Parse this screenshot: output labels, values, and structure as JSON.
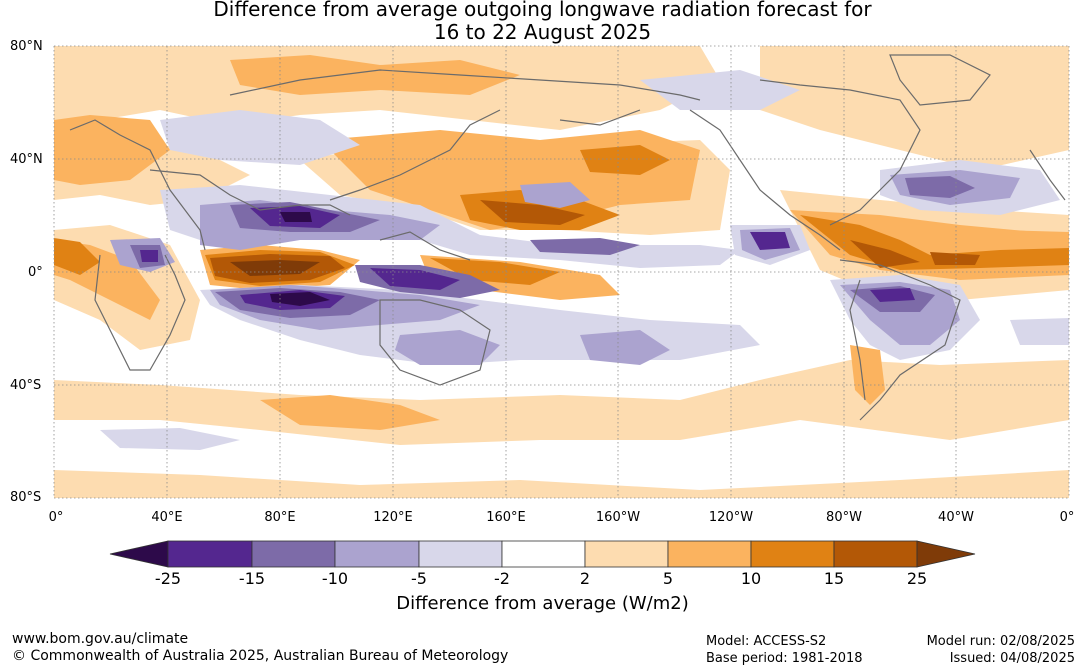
{
  "title": {
    "line1": "Difference from average outgoing longwave radiation forecast for",
    "line2": "16 to 22 August 2025"
  },
  "map": {
    "lat_labels": [
      "80°N",
      "40°N",
      "0°",
      "40°S",
      "80°S"
    ],
    "lon_labels": [
      "0°",
      "40°E",
      "80°E",
      "120°E",
      "160°E",
      "160°W",
      "120°W",
      "80°W",
      "40°W",
      "0°"
    ]
  },
  "colorbar": {
    "title": "Difference from average (W/m2)",
    "ticks": [
      "-25",
      "-15",
      "-10",
      "-5",
      "-2",
      "2",
      "5",
      "10",
      "15",
      "25"
    ],
    "colors": {
      "lt_-25": "#2d0a4a",
      "-25_-15": "#54278f",
      "-15_-10": "#7d6ba8",
      "-10_-5": "#aba3cf",
      "-5_-2": "#d8d7ea",
      "-2_2": "#ffffff",
      "2_5": "#fddcb0",
      "5_10": "#fbb35f",
      "10_15": "#e08214",
      "15_25": "#b35806",
      "gt_25": "#7f3b08"
    }
  },
  "footer": {
    "website": "www.bom.gov.au/climate",
    "copyright": "© Commonwealth of Australia 2025, Australian Bureau of Meteorology",
    "model": "Model: ACCESS-S2",
    "base_period": "Base period: 1981-2018",
    "model_run": "Model run: 02/08/2025",
    "issued": "Issued: 04/08/2025"
  }
}
